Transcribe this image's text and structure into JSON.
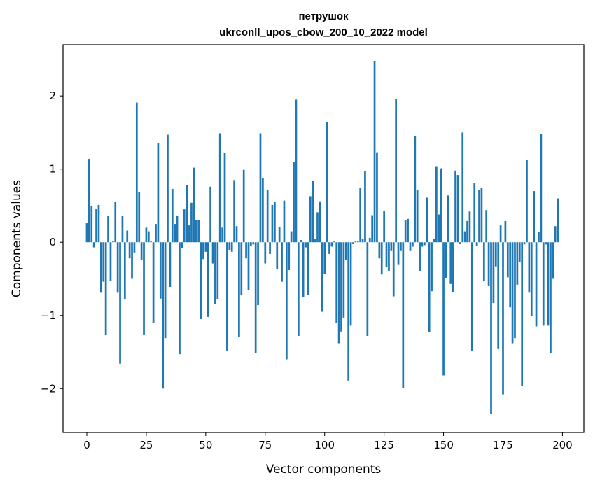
{
  "chart_data": {
    "type": "bar",
    "title": "петрушок",
    "subtitle": "ukrconll_upos_cbow_200_10_2022 model",
    "xlabel": "Vector components",
    "ylabel": "Components values",
    "xlim": [
      -10,
      209
    ],
    "ylim": [
      -2.6,
      2.7
    ],
    "x_ticks": [
      0,
      25,
      50,
      75,
      100,
      125,
      150,
      175,
      200
    ],
    "x_tick_labels": [
      "0",
      "25",
      "50",
      "75",
      "100",
      "125",
      "150",
      "175",
      "200"
    ],
    "y_ticks": [
      -2,
      -1,
      0,
      1,
      2
    ],
    "y_tick_labels": [
      "−2",
      "−1",
      "0",
      "1",
      "2"
    ],
    "color": "#1f77b4",
    "values": [
      0.26,
      1.14,
      0.5,
      -0.07,
      0.46,
      0.51,
      -0.69,
      -0.54,
      -1.27,
      0.36,
      -0.53,
      0.01,
      0.55,
      -0.69,
      -1.66,
      0.36,
      -0.78,
      0.16,
      -0.22,
      -0.5,
      -0.14,
      1.91,
      0.69,
      -0.24,
      -1.27,
      0.2,
      0.15,
      0.01,
      -1.1,
      0.25,
      1.36,
      -0.77,
      -2.0,
      -1.31,
      1.47,
      -0.61,
      0.73,
      0.25,
      0.36,
      -1.53,
      -0.08,
      0.45,
      0.78,
      0.23,
      0.54,
      1.02,
      0.3,
      0.3,
      -1.05,
      -0.23,
      -0.13,
      -1.02,
      0.76,
      -0.29,
      -0.84,
      -0.78,
      1.49,
      0.2,
      1.22,
      -1.48,
      -0.11,
      -0.13,
      0.85,
      0.22,
      -1.29,
      -0.72,
      0.99,
      -0.22,
      -0.65,
      -0.05,
      -0.03,
      -1.51,
      -0.86,
      1.49,
      0.88,
      -0.29,
      0.72,
      -0.16,
      0.51,
      0.55,
      -0.37,
      0.21,
      -0.54,
      0.57,
      -1.6,
      -0.38,
      0.15,
      1.1,
      1.95,
      -1.28,
      0.03,
      -0.75,
      -0.07,
      -0.72,
      0.63,
      0.84,
      0.04,
      0.41,
      0.56,
      -0.95,
      -0.43,
      1.64,
      -0.16,
      -0.06,
      0.01,
      -1.1,
      -1.38,
      -1.22,
      -1.03,
      -0.24,
      -1.89,
      -1.14,
      -0.02,
      0.01,
      0.01,
      0.74,
      0.05,
      0.97,
      -1.28,
      0.06,
      0.37,
      2.48,
      1.23,
      -0.22,
      -0.44,
      0.43,
      -0.34,
      -0.39,
      -0.12,
      -0.74,
      1.96,
      -0.31,
      -0.12,
      -1.99,
      0.3,
      0.32,
      -0.12,
      -0.06,
      1.45,
      0.72,
      -0.39,
      -0.06,
      -0.04,
      0.61,
      -1.23,
      -0.67,
      0.05,
      1.04,
      0.38,
      1.01,
      -1.82,
      -0.49,
      0.64,
      -0.57,
      -0.68,
      0.98,
      0.92,
      -0.02,
      1.5,
      0.15,
      0.29,
      0.42,
      -1.49,
      0.81,
      -0.05,
      0.71,
      0.74,
      -0.53,
      0.44,
      -0.6,
      -2.35,
      -0.83,
      -0.33,
      -1.46,
      0.23,
      -2.08,
      0.29,
      -0.48,
      -0.89,
      -1.38,
      -1.31,
      -0.58,
      -0.27,
      -1.96,
      -0.03,
      1.13,
      -0.69,
      -1.01,
      0.7,
      -1.15,
      0.14,
      1.48,
      -1.14,
      -0.03,
      -1.14,
      -1.52,
      -0.5,
      0.22,
      0.6
    ]
  }
}
